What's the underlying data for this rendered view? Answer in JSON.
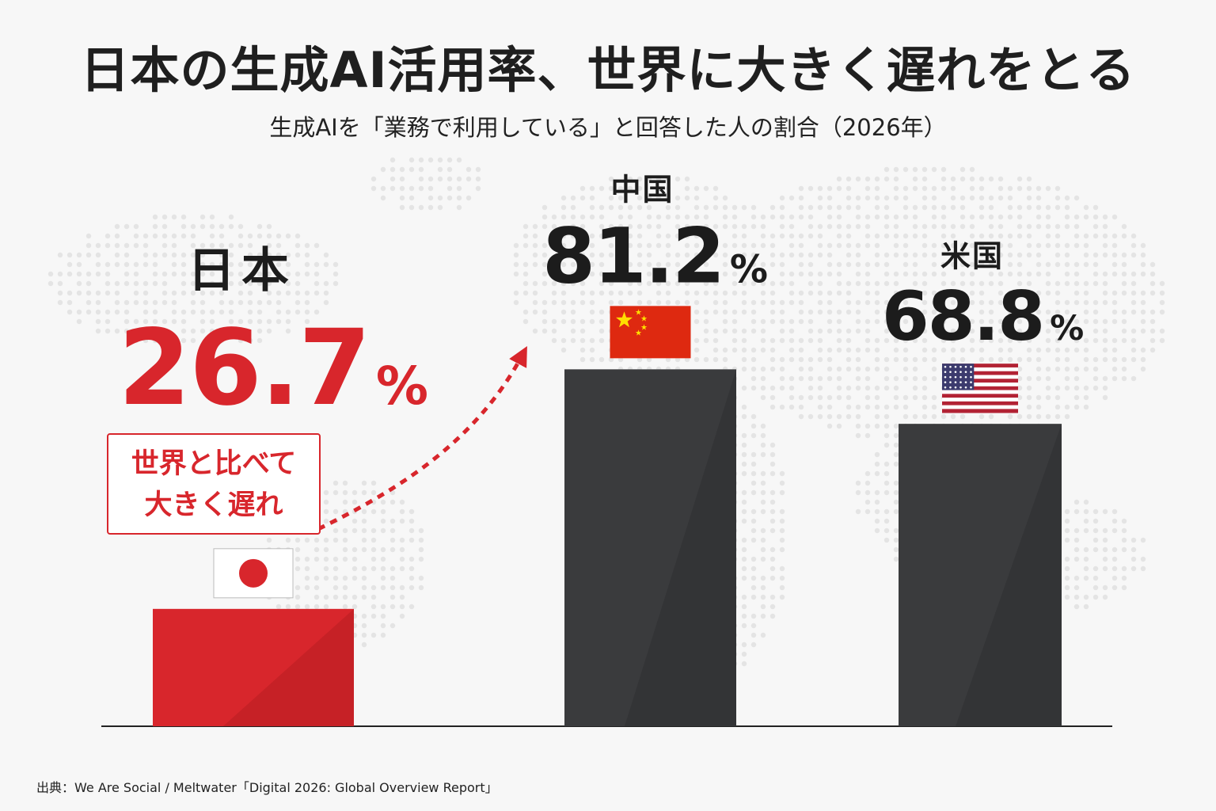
{
  "title": "日本の生成AI活用率、世界に大きく遅れをとる",
  "subtitle": "生成AIを「業務で利用している」と回答した人の割合（2026年）",
  "callout": {
    "line1": "世界と比べて",
    "line2": "大きく遅れ"
  },
  "source": "出典：We Are Social / Meltwater「Digital 2026: Global Overview Report」",
  "colors": {
    "japan": "#d8262c",
    "other": "#3a3b3d",
    "text": "#1c1c1c"
  },
  "chart_data": {
    "type": "bar",
    "categories": [
      "日本",
      "中国",
      "米国"
    ],
    "values": [
      26.7,
      81.2,
      68.8
    ],
    "value_labels": [
      "26.7",
      "81.2",
      "68.8"
    ],
    "unit": "%",
    "flags": [
      "japan-flag",
      "china-flag",
      "usa-flag"
    ],
    "highlight": "日本",
    "ylim": [
      0,
      100
    ],
    "grid": false,
    "legend": "none"
  }
}
